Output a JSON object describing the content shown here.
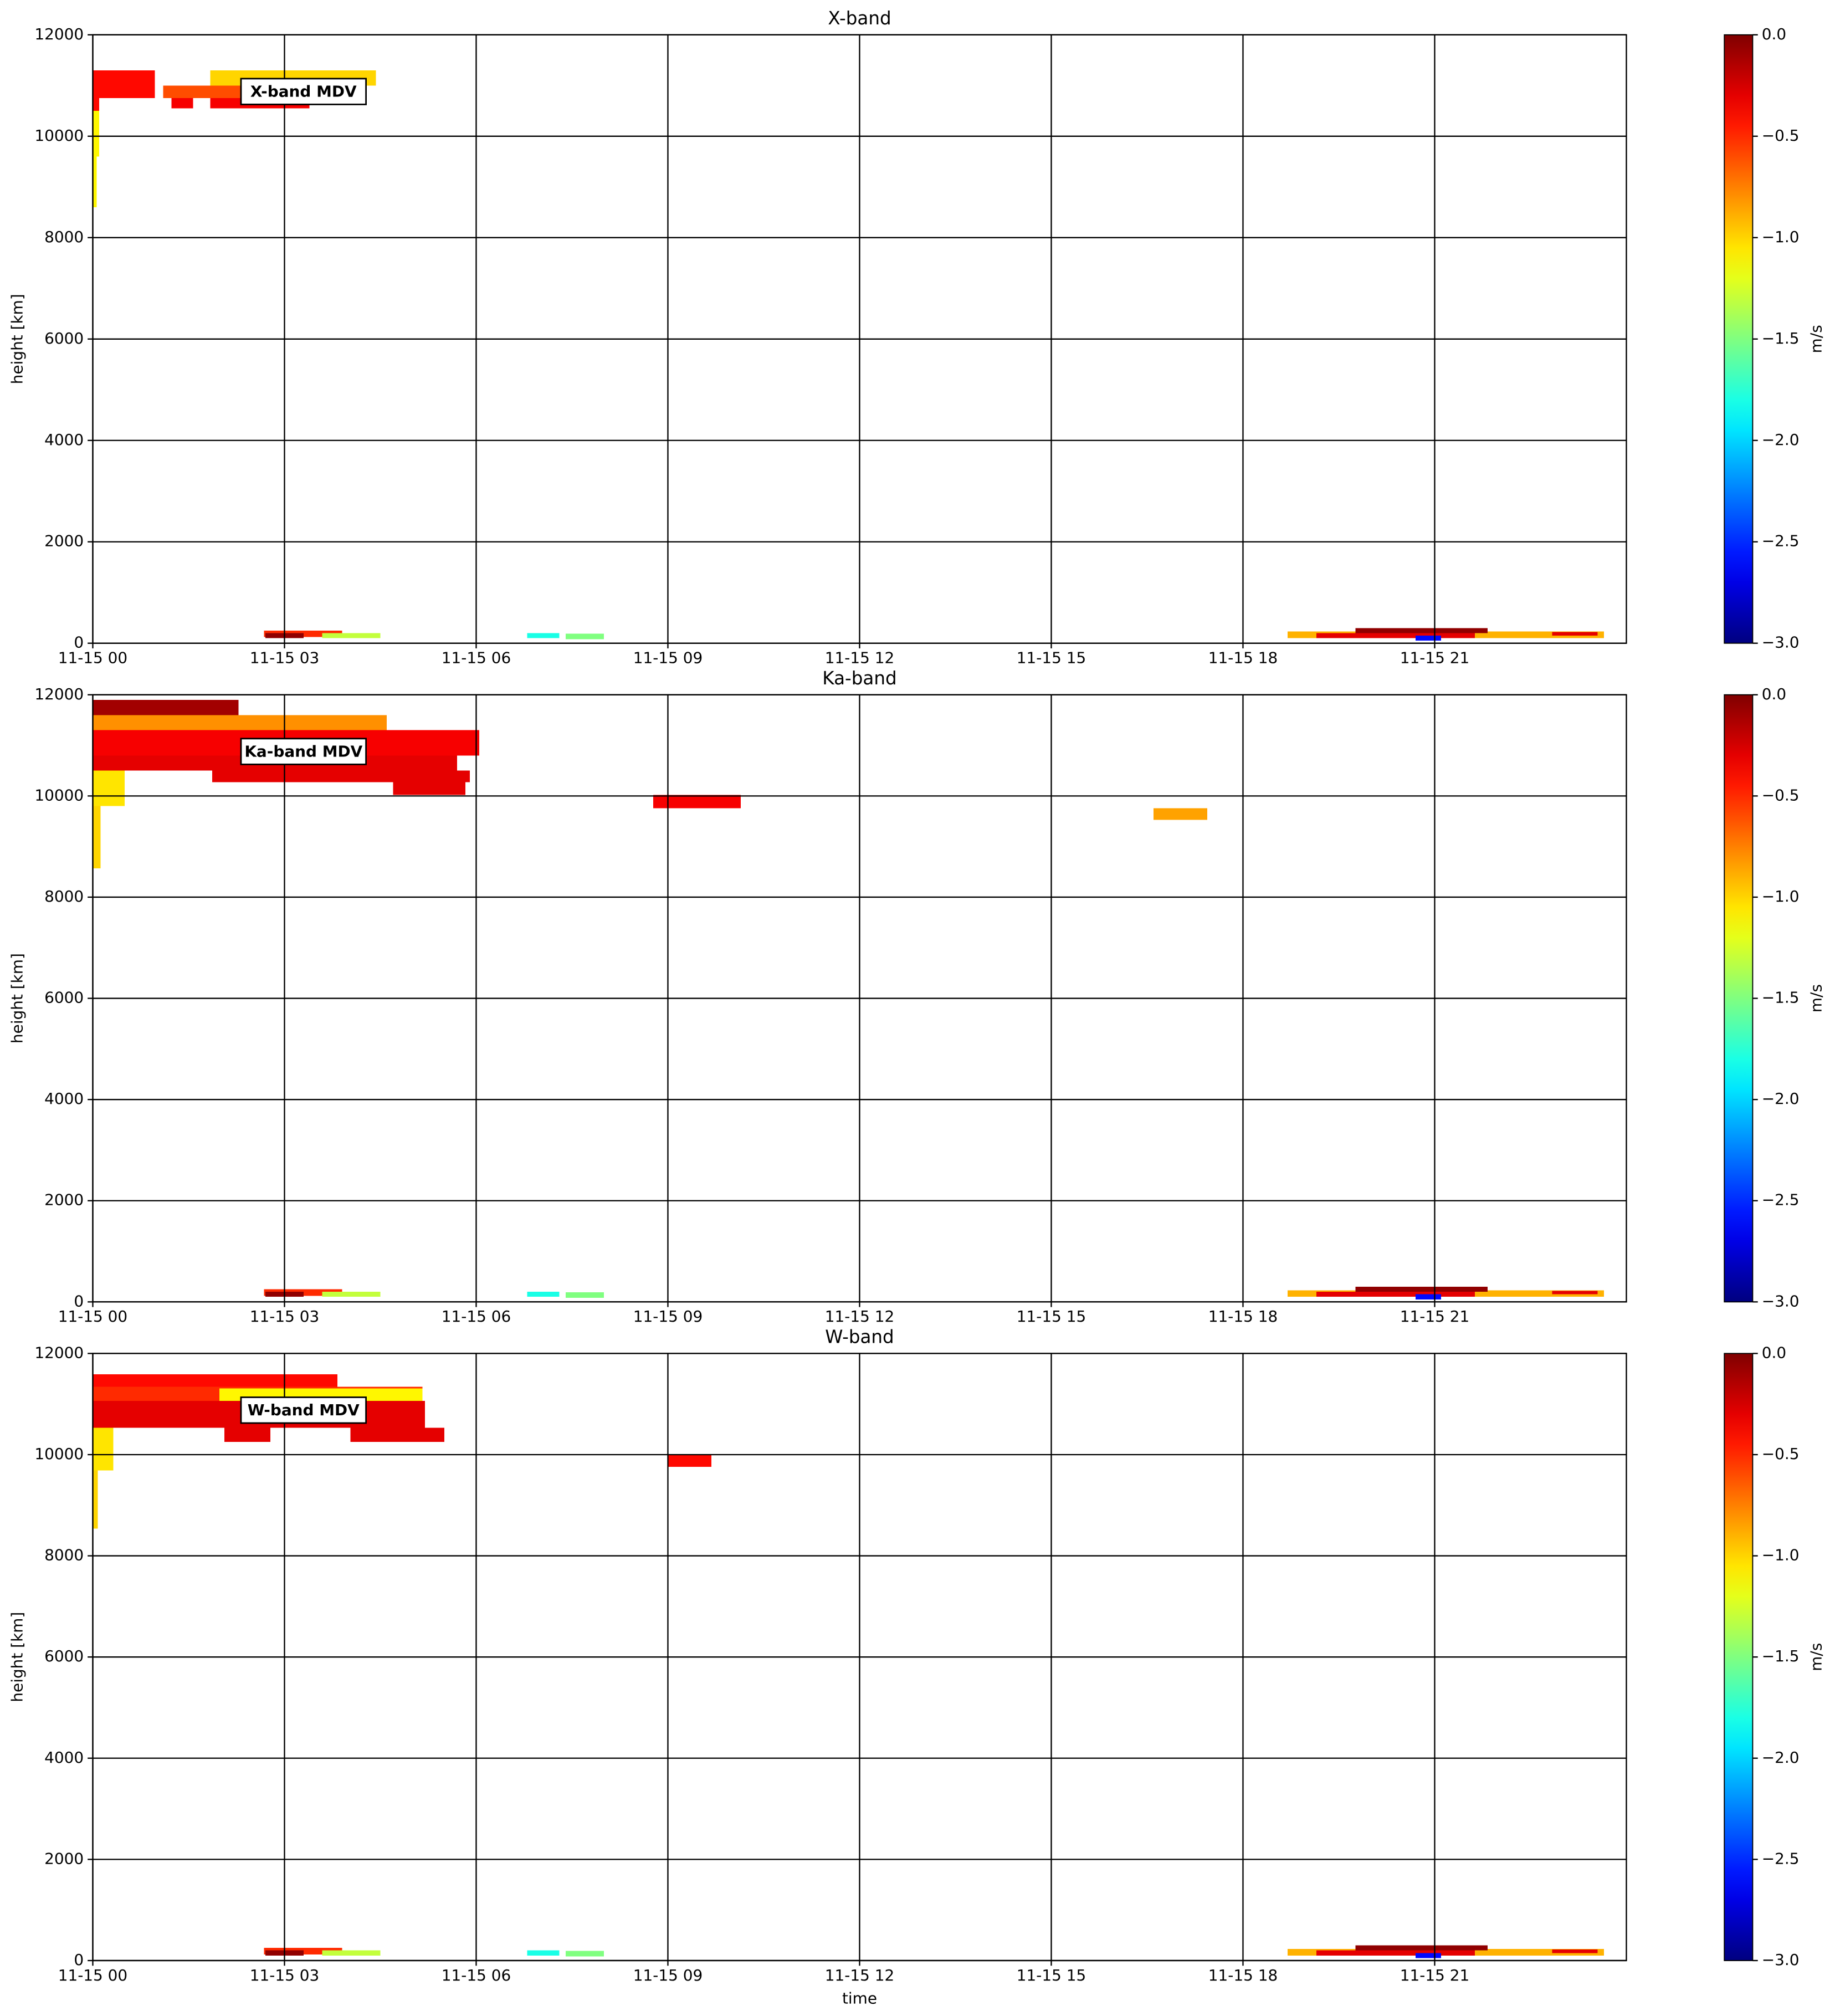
{
  "chart_data": [
    {
      "type": "heatmap",
      "title": "X-band",
      "annotation": "X-band MDV",
      "y_label": "height [km]",
      "colorbar_label": "m/s",
      "colormap": "jet",
      "grid": true,
      "xlim": [
        0,
        24
      ],
      "ylim": [
        0,
        12000
      ],
      "clim": [
        -3,
        0
      ],
      "xticks": [
        {
          "value": 0,
          "label": "11-15 00"
        },
        {
          "value": 3,
          "label": "11-15 03"
        },
        {
          "value": 6,
          "label": "11-15 06"
        },
        {
          "value": 9,
          "label": "11-15 09"
        },
        {
          "value": 12,
          "label": "11-15 12"
        },
        {
          "value": 15,
          "label": "11-15 15"
        },
        {
          "value": 18,
          "label": "11-15 18"
        },
        {
          "value": 21,
          "label": "11-15 21"
        }
      ],
      "yticks": [
        0,
        2000,
        4000,
        6000,
        8000,
        10000,
        12000
      ],
      "cticks": [
        {
          "value": 0,
          "label": "0.0"
        },
        {
          "value": -0.5,
          "label": "−0.5"
        },
        {
          "value": -1,
          "label": "−1.0"
        },
        {
          "value": -1.5,
          "label": "−1.5"
        },
        {
          "value": -2,
          "label": "−2.0"
        },
        {
          "value": -2.5,
          "label": "−2.5"
        },
        {
          "value": -3,
          "label": "−3.0"
        }
      ],
      "cells": [
        [
          0,
          0.97,
          10750,
          11300,
          -0.4
        ],
        [
          0,
          0.1,
          10500,
          10750,
          -0.4
        ],
        [
          1.1,
          2.68,
          10750,
          11000,
          -0.6
        ],
        [
          1.84,
          4.43,
          11000,
          11300,
          -1.0
        ],
        [
          1.23,
          1.57,
          10550,
          10750,
          -0.35
        ],
        [
          1.84,
          3.39,
          10550,
          10750,
          -0.35
        ],
        [
          0,
          0.1,
          9600,
          10500,
          -1.1
        ],
        [
          0,
          0.06,
          8600,
          9600,
          -1.1
        ],
        [
          2.68,
          3.9,
          120,
          250,
          -0.5
        ],
        [
          2.7,
          3.3,
          100,
          200,
          -0.05
        ],
        [
          3.59,
          4.5,
          100,
          200,
          -1.3
        ],
        [
          6.8,
          7.3,
          100,
          200,
          -1.8
        ],
        [
          7.4,
          8.0,
          80,
          190,
          -1.5
        ],
        [
          18.7,
          23.65,
          100,
          230,
          -0.9
        ],
        [
          19.15,
          21.63,
          100,
          200,
          -0.3
        ],
        [
          19.76,
          21.83,
          200,
          300,
          -0.05
        ],
        [
          20.7,
          21.1,
          50,
          150,
          -2.6
        ],
        [
          22.84,
          23.55,
          150,
          220,
          -0.3
        ]
      ]
    },
    {
      "type": "heatmap",
      "title": "Ka-band",
      "annotation": "Ka-band MDV",
      "y_label": "height [km]",
      "colorbar_label": "m/s",
      "colormap": "jet",
      "grid": true,
      "xlim": [
        0,
        24
      ],
      "ylim": [
        0,
        12000
      ],
      "clim": [
        -3,
        0
      ],
      "xticks": [
        {
          "value": 0,
          "label": "11-15 00"
        },
        {
          "value": 3,
          "label": "11-15 03"
        },
        {
          "value": 6,
          "label": "11-15 06"
        },
        {
          "value": 9,
          "label": "11-15 09"
        },
        {
          "value": 12,
          "label": "11-15 12"
        },
        {
          "value": 15,
          "label": "11-15 15"
        },
        {
          "value": 18,
          "label": "11-15 18"
        },
        {
          "value": 21,
          "label": "11-15 21"
        }
      ],
      "yticks": [
        0,
        2000,
        4000,
        6000,
        8000,
        10000,
        12000
      ],
      "cticks": [
        {
          "value": 0,
          "label": "0.0"
        },
        {
          "value": -0.5,
          "label": "−0.5"
        },
        {
          "value": -1,
          "label": "−1.0"
        },
        {
          "value": -1.5,
          "label": "−1.5"
        },
        {
          "value": -2,
          "label": "−2.0"
        },
        {
          "value": -2.5,
          "label": "−2.5"
        },
        {
          "value": -3,
          "label": "−3.0"
        }
      ],
      "cells": [
        [
          0,
          2.28,
          11600,
          11900,
          -0.1
        ],
        [
          0,
          4.6,
          11300,
          11600,
          -0.8
        ],
        [
          0,
          6.05,
          10800,
          11300,
          -0.35
        ],
        [
          0,
          5.7,
          10500,
          10800,
          -0.3
        ],
        [
          1.87,
          5.9,
          10270,
          10500,
          -0.3
        ],
        [
          4.7,
          5.83,
          10020,
          10270,
          -0.3
        ],
        [
          0,
          0.5,
          9800,
          10500,
          -1.05
        ],
        [
          0,
          0.12,
          8570,
          9800,
          -1.0
        ],
        [
          8.77,
          10.14,
          9760,
          10020,
          -0.35
        ],
        [
          16.6,
          17.44,
          9530,
          9760,
          -0.85
        ],
        [
          2.68,
          3.9,
          120,
          250,
          -0.5
        ],
        [
          2.7,
          3.3,
          100,
          200,
          -0.05
        ],
        [
          3.59,
          4.5,
          100,
          200,
          -1.3
        ],
        [
          6.8,
          7.3,
          100,
          200,
          -1.8
        ],
        [
          7.4,
          8.0,
          80,
          190,
          -1.5
        ],
        [
          18.7,
          23.65,
          100,
          230,
          -0.9
        ],
        [
          19.15,
          21.63,
          100,
          200,
          -0.3
        ],
        [
          19.76,
          21.83,
          200,
          300,
          -0.05
        ],
        [
          20.7,
          21.1,
          50,
          150,
          -2.6
        ],
        [
          22.84,
          23.55,
          150,
          220,
          -0.3
        ]
      ]
    },
    {
      "type": "heatmap",
      "title": "W-band",
      "annotation": "W-band MDV",
      "y_label": "height [km]",
      "x_label": "time",
      "colorbar_label": "m/s",
      "colormap": "jet",
      "grid": true,
      "xlim": [
        0,
        24
      ],
      "ylim": [
        0,
        12000
      ],
      "clim": [
        -3,
        0
      ],
      "xticks": [
        {
          "value": 0,
          "label": "11-15 00"
        },
        {
          "value": 3,
          "label": "11-15 03"
        },
        {
          "value": 6,
          "label": "11-15 06"
        },
        {
          "value": 9,
          "label": "11-15 09"
        },
        {
          "value": 12,
          "label": "11-15 12"
        },
        {
          "value": 15,
          "label": "11-15 15"
        },
        {
          "value": 18,
          "label": "11-15 18"
        },
        {
          "value": 21,
          "label": "11-15 21"
        }
      ],
      "yticks": [
        0,
        2000,
        4000,
        6000,
        8000,
        10000,
        12000
      ],
      "cticks": [
        {
          "value": 0,
          "label": "0.0"
        },
        {
          "value": -0.5,
          "label": "−0.5"
        },
        {
          "value": -1,
          "label": "−1.0"
        },
        {
          "value": -1.5,
          "label": "−1.5"
        },
        {
          "value": -2,
          "label": "−2.0"
        },
        {
          "value": -2.5,
          "label": "−2.5"
        },
        {
          "value": -3,
          "label": "−3.0"
        }
      ],
      "cells": [
        [
          0,
          3.83,
          11340,
          11590,
          -0.4
        ],
        [
          0,
          5.16,
          11060,
          11340,
          -0.5
        ],
        [
          1.98,
          5.16,
          11060,
          11310,
          -1.1
        ],
        [
          0,
          5.2,
          10530,
          11060,
          -0.3
        ],
        [
          2.06,
          2.78,
          10250,
          10530,
          -0.3
        ],
        [
          4.03,
          5.5,
          10250,
          10530,
          -0.3
        ],
        [
          0,
          0.32,
          9690,
          10530,
          -1.05
        ],
        [
          0,
          0.08,
          8540,
          9690,
          -1.0
        ],
        [
          9.0,
          9.68,
          9760,
          9990,
          -0.4
        ],
        [
          2.68,
          3.9,
          120,
          250,
          -0.5
        ],
        [
          2.7,
          3.3,
          100,
          200,
          -0.05
        ],
        [
          3.59,
          4.5,
          100,
          200,
          -1.3
        ],
        [
          6.8,
          7.3,
          100,
          200,
          -1.8
        ],
        [
          7.4,
          8.0,
          80,
          190,
          -1.5
        ],
        [
          18.7,
          23.65,
          100,
          230,
          -0.9
        ],
        [
          19.15,
          21.63,
          100,
          200,
          -0.3
        ],
        [
          19.76,
          21.83,
          200,
          300,
          -0.05
        ],
        [
          20.7,
          21.1,
          50,
          150,
          -2.6
        ],
        [
          22.84,
          23.55,
          150,
          220,
          -0.3
        ]
      ]
    }
  ]
}
